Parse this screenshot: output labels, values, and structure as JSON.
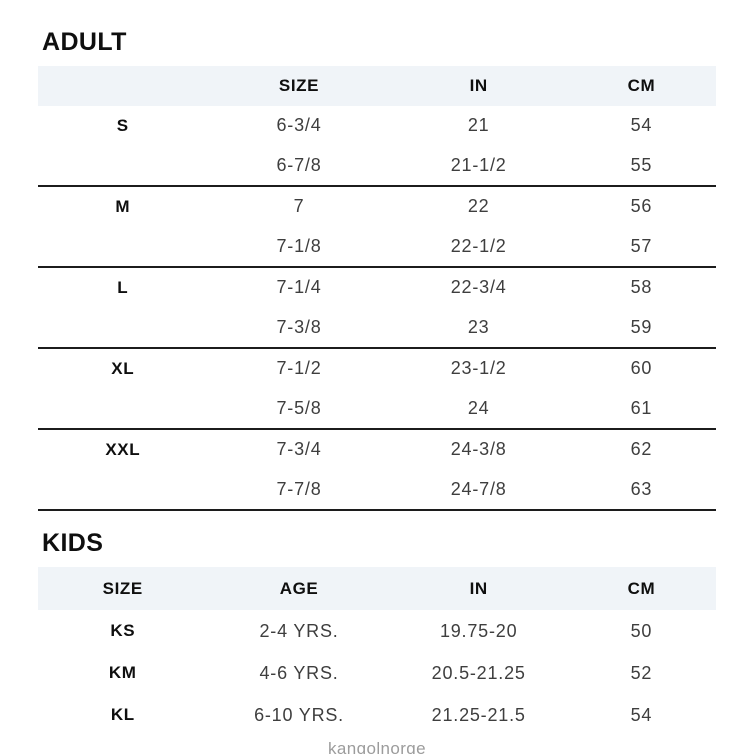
{
  "colors": {
    "header_band": "#f0f4f8",
    "separator_line": "#1c1c1c",
    "heading_text": "#0f0f0f",
    "data_text": "#3e3e3e",
    "footer_text": "#9c9c9c",
    "background": "#ffffff"
  },
  "adult": {
    "title": "ADULT",
    "columns": [
      "",
      "SIZE",
      "IN",
      "CM"
    ],
    "groups": [
      {
        "label": "S",
        "rows": [
          [
            "6-3/4",
            "21",
            "54"
          ],
          [
            "6-7/8",
            "21-1/2",
            "55"
          ]
        ]
      },
      {
        "label": "M",
        "rows": [
          [
            "7",
            "22",
            "56"
          ],
          [
            "7-1/8",
            "22-1/2",
            "57"
          ]
        ]
      },
      {
        "label": "L",
        "rows": [
          [
            "7-1/4",
            "22-3/4",
            "58"
          ],
          [
            "7-3/8",
            "23",
            "59"
          ]
        ]
      },
      {
        "label": "XL",
        "rows": [
          [
            "7-1/2",
            "23-1/2",
            "60"
          ],
          [
            "7-5/8",
            "24",
            "61"
          ]
        ]
      },
      {
        "label": "XXL",
        "rows": [
          [
            "7-3/4",
            "24-3/8",
            "62"
          ],
          [
            "7-7/8",
            "24-7/8",
            "63"
          ]
        ]
      }
    ]
  },
  "kids": {
    "title": "KIDS",
    "columns": [
      "SIZE",
      "AGE",
      "IN",
      "CM"
    ],
    "rows": [
      {
        "size": "KS",
        "age": "2-4 YRS.",
        "in": "19.75-20",
        "cm": "50"
      },
      {
        "size": "KM",
        "age": "4-6 YRS.",
        "in": "20.5-21.25",
        "cm": "52"
      },
      {
        "size": "KL",
        "age": "6-10 YRS.",
        "in": "21.25-21.5",
        "cm": "54"
      }
    ]
  },
  "footer": {
    "brand": "kangolnorge"
  }
}
